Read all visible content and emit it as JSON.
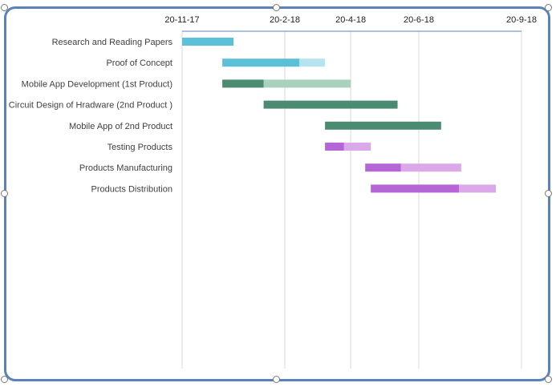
{
  "chart_data": {
    "type": "gantt",
    "title": "",
    "xlabel": "",
    "ylabel": "",
    "x_ticks": [
      "20-11-17",
      "20-2-18",
      "20-4-18",
      "20-6-18",
      "20-9-18"
    ],
    "x_tick_dates": [
      "2017-11-20",
      "2018-02-20",
      "2018-04-20",
      "2018-06-20",
      "2018-09-20"
    ],
    "grid": "vertical",
    "tasks": [
      {
        "name": "Research and Reading Papers",
        "start": "2017-11-20",
        "progress_end": "2018-01-05",
        "end": "2018-01-05",
        "color": "#5bc1d9",
        "remaining_color": "#b5e4ef"
      },
      {
        "name": "Proof of Concept",
        "start": "2017-12-26",
        "progress_end": "2018-03-05",
        "end": "2018-03-28",
        "color": "#5bc1d9",
        "remaining_color": "#b5e4ef"
      },
      {
        "name": "Mobile App Development (1st Product)",
        "start": "2017-12-26",
        "progress_end": "2018-02-01",
        "end": "2018-04-20",
        "color": "#4a8b72",
        "remaining_color": "#a8d2bf"
      },
      {
        "name": "Circuit Design of Hradware (2nd Product )",
        "start": "2018-02-01",
        "progress_end": "2018-06-01",
        "end": "2018-06-01",
        "color": "#4a8b72",
        "remaining_color": "#a8d2bf"
      },
      {
        "name": "Mobile App of 2nd Product",
        "start": "2018-03-28",
        "progress_end": "2018-07-10",
        "end": "2018-07-10",
        "color": "#4a8b72",
        "remaining_color": "#a8d2bf"
      },
      {
        "name": "Testing Products",
        "start": "2018-03-28",
        "progress_end": "2018-04-14",
        "end": "2018-05-08",
        "color": "#b565d6",
        "remaining_color": "#dba8ea"
      },
      {
        "name": "Products Manufacturing",
        "start": "2018-05-03",
        "progress_end": "2018-06-04",
        "end": "2018-07-28",
        "color": "#b565d6",
        "remaining_color": "#dba8ea"
      },
      {
        "name": "Products Distribution",
        "start": "2018-05-08",
        "progress_end": "2018-07-26",
        "end": "2018-08-28",
        "color": "#b565d6",
        "remaining_color": "#dba8ea"
      }
    ],
    "colors": {
      "axis": "#5b82b8",
      "grid": "#d9d9d9",
      "frame": "#5b82b8"
    }
  }
}
